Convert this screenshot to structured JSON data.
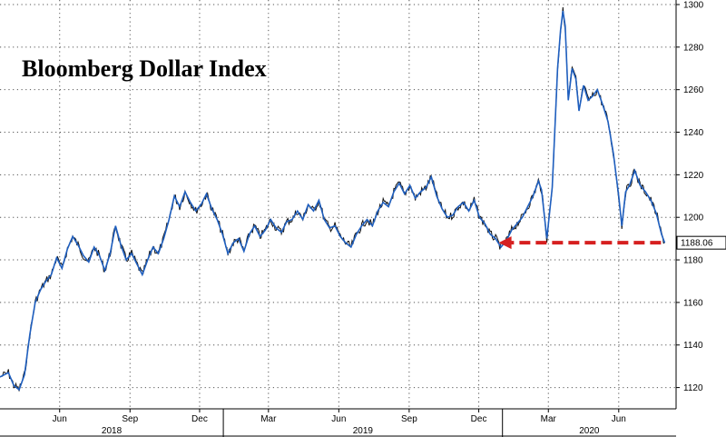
{
  "chart_data": {
    "type": "line",
    "title": "Bloomberg Dollar Index",
    "xlabel": "",
    "ylabel": "",
    "ylim": [
      1110,
      1300
    ],
    "yticks": [
      1120,
      1140,
      1160,
      1180,
      1200,
      1220,
      1240,
      1260,
      1280,
      1300
    ],
    "xlim": [
      "2018-03-15",
      "2020-08-15"
    ],
    "xticks": [
      {
        "date": "2018-06-01",
        "label": "Jun"
      },
      {
        "date": "2018-09-01",
        "label": "Sep"
      },
      {
        "date": "2018-12-01",
        "label": "Dec"
      },
      {
        "date": "2019-03-01",
        "label": "Mar"
      },
      {
        "date": "2019-06-01",
        "label": "Jun"
      },
      {
        "date": "2019-09-01",
        "label": "Sep"
      },
      {
        "date": "2019-12-01",
        "label": "Dec"
      },
      {
        "date": "2020-03-01",
        "label": "Mar"
      },
      {
        "date": "2020-06-01",
        "label": "Jun"
      }
    ],
    "years": [
      {
        "label": "2018",
        "start": "2018-03-15",
        "end": "2019-01-01"
      },
      {
        "label": "2019",
        "start": "2019-01-01",
        "end": "2020-01-01"
      },
      {
        "label": "2020",
        "start": "2020-01-01",
        "end": "2020-08-15"
      }
    ],
    "grid": true,
    "y_axis_side": "right",
    "last_value": 1188.06,
    "last_value_label": "1188.06",
    "series": [
      {
        "color": "#1f5fbf",
        "points": [
          [
            "2018-03-15",
            1125
          ],
          [
            "2018-03-26",
            1127
          ],
          [
            "2018-04-02",
            1121
          ],
          [
            "2018-04-09",
            1119
          ],
          [
            "2018-04-16",
            1126
          ],
          [
            "2018-04-23",
            1145
          ],
          [
            "2018-04-30",
            1160
          ],
          [
            "2018-05-07",
            1166
          ],
          [
            "2018-05-14",
            1170
          ],
          [
            "2018-05-21",
            1173
          ],
          [
            "2018-05-28",
            1181
          ],
          [
            "2018-06-04",
            1176
          ],
          [
            "2018-06-11",
            1185
          ],
          [
            "2018-06-18",
            1191
          ],
          [
            "2018-06-25",
            1187
          ],
          [
            "2018-07-02",
            1182
          ],
          [
            "2018-07-09",
            1179
          ],
          [
            "2018-07-16",
            1186
          ],
          [
            "2018-07-23",
            1182
          ],
          [
            "2018-07-30",
            1175
          ],
          [
            "2018-08-06",
            1183
          ],
          [
            "2018-08-13",
            1196
          ],
          [
            "2018-08-20",
            1187
          ],
          [
            "2018-08-27",
            1180
          ],
          [
            "2018-09-03",
            1183
          ],
          [
            "2018-09-10",
            1178
          ],
          [
            "2018-09-17",
            1173
          ],
          [
            "2018-09-24",
            1180
          ],
          [
            "2018-10-01",
            1186
          ],
          [
            "2018-10-08",
            1183
          ],
          [
            "2018-10-15",
            1190
          ],
          [
            "2018-10-22",
            1199
          ],
          [
            "2018-10-29",
            1210
          ],
          [
            "2018-11-05",
            1205
          ],
          [
            "2018-11-12",
            1212
          ],
          [
            "2018-11-19",
            1207
          ],
          [
            "2018-11-26",
            1203
          ],
          [
            "2018-12-03",
            1206
          ],
          [
            "2018-12-10",
            1211
          ],
          [
            "2018-12-17",
            1204
          ],
          [
            "2018-12-24",
            1199
          ],
          [
            "2018-12-31",
            1192
          ],
          [
            "2019-01-07",
            1183
          ],
          [
            "2019-01-14",
            1188
          ],
          [
            "2019-01-21",
            1190
          ],
          [
            "2019-01-28",
            1184
          ],
          [
            "2019-02-04",
            1192
          ],
          [
            "2019-02-11",
            1196
          ],
          [
            "2019-02-18",
            1191
          ],
          [
            "2019-02-25",
            1194
          ],
          [
            "2019-03-04",
            1199
          ],
          [
            "2019-03-11",
            1195
          ],
          [
            "2019-03-18",
            1193
          ],
          [
            "2019-03-25",
            1198
          ],
          [
            "2019-04-01",
            1199
          ],
          [
            "2019-04-08",
            1203
          ],
          [
            "2019-04-15",
            1199
          ],
          [
            "2019-04-22",
            1206
          ],
          [
            "2019-04-29",
            1203
          ],
          [
            "2019-05-06",
            1208
          ],
          [
            "2019-05-13",
            1199
          ],
          [
            "2019-05-20",
            1195
          ],
          [
            "2019-05-27",
            1196
          ],
          [
            "2019-06-03",
            1191
          ],
          [
            "2019-06-10",
            1188
          ],
          [
            "2019-06-17",
            1186
          ],
          [
            "2019-06-24",
            1192
          ],
          [
            "2019-07-01",
            1196
          ],
          [
            "2019-07-08",
            1199
          ],
          [
            "2019-07-15",
            1196
          ],
          [
            "2019-07-22",
            1203
          ],
          [
            "2019-07-29",
            1207
          ],
          [
            "2019-08-05",
            1205
          ],
          [
            "2019-08-12",
            1212
          ],
          [
            "2019-08-19",
            1216
          ],
          [
            "2019-08-26",
            1211
          ],
          [
            "2019-09-02",
            1215
          ],
          [
            "2019-09-09",
            1209
          ],
          [
            "2019-09-16",
            1212
          ],
          [
            "2019-09-23",
            1214
          ],
          [
            "2019-09-30",
            1219
          ],
          [
            "2019-10-07",
            1210
          ],
          [
            "2019-10-14",
            1204
          ],
          [
            "2019-10-21",
            1200
          ],
          [
            "2019-10-28",
            1201
          ],
          [
            "2019-11-04",
            1205
          ],
          [
            "2019-11-11",
            1207
          ],
          [
            "2019-11-18",
            1203
          ],
          [
            "2019-11-25",
            1208
          ],
          [
            "2019-12-02",
            1200
          ],
          [
            "2019-12-09",
            1197
          ],
          [
            "2019-12-16",
            1192
          ],
          [
            "2019-12-23",
            1190
          ],
          [
            "2019-12-30",
            1186
          ],
          [
            "2020-01-06",
            1189
          ],
          [
            "2020-01-13",
            1194
          ],
          [
            "2020-01-20",
            1197
          ],
          [
            "2020-01-27",
            1200
          ],
          [
            "2020-02-03",
            1205
          ],
          [
            "2020-02-10",
            1210
          ],
          [
            "2020-02-17",
            1217
          ],
          [
            "2020-02-21",
            1213
          ],
          [
            "2020-02-28",
            1190
          ],
          [
            "2020-03-06",
            1214
          ],
          [
            "2020-03-10",
            1245
          ],
          [
            "2020-03-13",
            1270
          ],
          [
            "2020-03-17",
            1288
          ],
          [
            "2020-03-20",
            1297
          ],
          [
            "2020-03-23",
            1290
          ],
          [
            "2020-03-27",
            1255
          ],
          [
            "2020-04-01",
            1270
          ],
          [
            "2020-04-06",
            1265
          ],
          [
            "2020-04-10",
            1250
          ],
          [
            "2020-04-16",
            1262
          ],
          [
            "2020-04-22",
            1255
          ],
          [
            "2020-04-28",
            1257
          ],
          [
            "2020-05-04",
            1260
          ],
          [
            "2020-05-11",
            1253
          ],
          [
            "2020-05-18",
            1245
          ],
          [
            "2020-05-25",
            1230
          ],
          [
            "2020-06-01",
            1210
          ],
          [
            "2020-06-05",
            1196
          ],
          [
            "2020-06-10",
            1212
          ],
          [
            "2020-06-15",
            1215
          ],
          [
            "2020-06-22",
            1222
          ],
          [
            "2020-06-29",
            1215
          ],
          [
            "2020-07-06",
            1212
          ],
          [
            "2020-07-13",
            1208
          ],
          [
            "2020-07-20",
            1202
          ],
          [
            "2020-07-27",
            1192
          ],
          [
            "2020-07-31",
            1188.06
          ]
        ]
      }
    ],
    "annotations": [
      {
        "type": "dashed-arrow",
        "color": "#d62020",
        "from": [
          "2020-07-31",
          1188.06
        ],
        "to": [
          "2019-12-20",
          1188.06
        ]
      }
    ]
  }
}
